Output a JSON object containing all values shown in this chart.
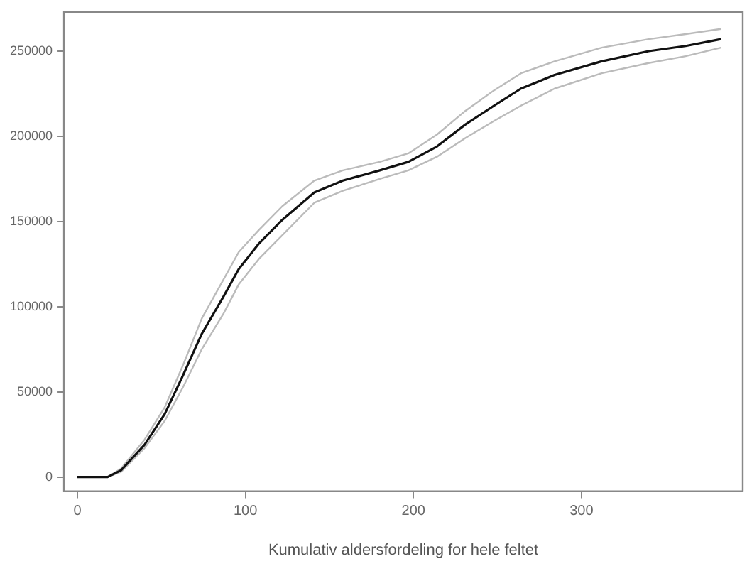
{
  "chart_data": {
    "type": "line",
    "xlabel": "Kumulativ aldersfordeling for hele feltet",
    "x": [
      0,
      18,
      26,
      40,
      52,
      63,
      74,
      87,
      96,
      108,
      122,
      141,
      158,
      180,
      197,
      214,
      231,
      248,
      264,
      284,
      312,
      340,
      362,
      383
    ],
    "series": [
      {
        "color": "#111111",
        "values": [
          0,
          0,
          4000,
          19000,
          37000,
          60000,
          84000,
          106000,
          122000,
          137000,
          151000,
          167000,
          174000,
          180000,
          185000,
          194000,
          207000,
          218000,
          228000,
          236000,
          244000,
          250000,
          253000,
          257000
        ]
      },
      {
        "color": "#bbbbbb",
        "values": [
          0,
          0,
          5000,
          22000,
          41000,
          66000,
          93000,
          116000,
          132000,
          145000,
          159000,
          174000,
          180000,
          185000,
          190000,
          201000,
          215000,
          227000,
          237000,
          244000,
          252000,
          257000,
          260000,
          263000
        ]
      },
      {
        "color": "#bbbbbb",
        "values": [
          0,
          0,
          3000,
          17000,
          33000,
          53000,
          75000,
          96000,
          113000,
          128000,
          142000,
          161000,
          168000,
          175000,
          180000,
          188000,
          199000,
          209000,
          218000,
          228000,
          237000,
          243000,
          247000,
          252000
        ]
      }
    ],
    "xlim": [
      -8,
      396
    ],
    "ylim": [
      -8300,
      273000
    ],
    "xticks": [
      0,
      100,
      200,
      300
    ],
    "yticks": [
      0,
      50000,
      100000,
      150000,
      200000,
      250000
    ],
    "grid": false,
    "legend": false,
    "marker": "none",
    "line_style": "solid"
  }
}
